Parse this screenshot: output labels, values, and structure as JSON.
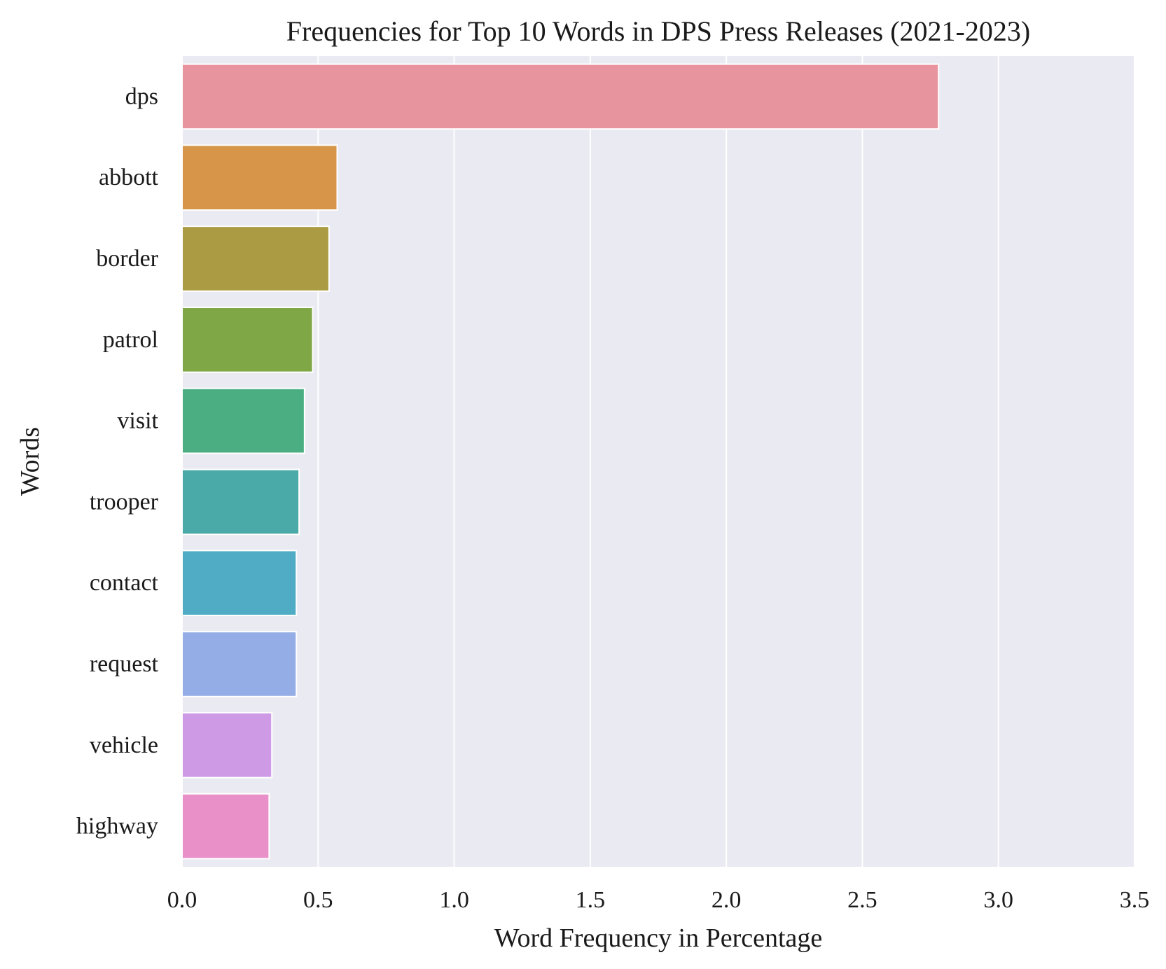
{
  "chart_data": {
    "type": "bar",
    "orientation": "horizontal",
    "title": "Frequencies for Top 10 Words in DPS Press Releases (2021-2023)",
    "xlabel": "Word Frequency in Percentage",
    "ylabel": "Words",
    "categories": [
      "dps",
      "abbott",
      "border",
      "patrol",
      "visit",
      "trooper",
      "contact",
      "request",
      "vehicle",
      "highway"
    ],
    "values": [
      2.78,
      0.57,
      0.54,
      0.48,
      0.45,
      0.43,
      0.42,
      0.42,
      0.33,
      0.32
    ],
    "colors": [
      "#e8949f",
      "#d69549",
      "#ab9c43",
      "#7fa746",
      "#4aae82",
      "#4aaaa7",
      "#50abc4",
      "#95ade6",
      "#ce9ae6",
      "#e990c9"
    ],
    "xlim": [
      0,
      3.5
    ],
    "xticks": [
      0.0,
      0.5,
      1.0,
      1.5,
      2.0,
      2.5,
      3.0,
      3.5
    ],
    "xtick_labels": [
      "0.0",
      "0.5",
      "1.0",
      "1.5",
      "2.0",
      "2.5",
      "3.0",
      "3.5"
    ],
    "grid": true,
    "grid_axis": "x",
    "background_color": "#eaeaf2",
    "grid_color": "#ffffff",
    "legend": "none"
  }
}
